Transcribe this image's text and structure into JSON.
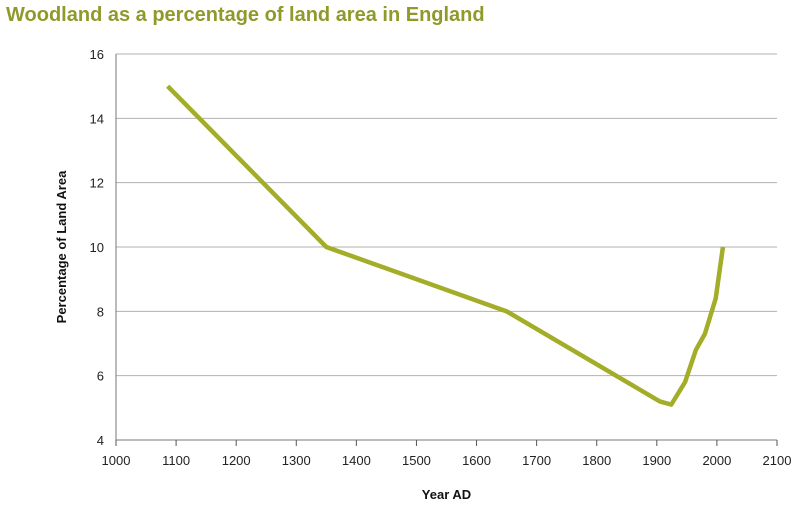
{
  "chart_data": {
    "type": "line",
    "title": "Woodland as a percentage of land area in England",
    "xlabel": "Year AD",
    "ylabel": "Percentage of Land Area",
    "xlim": [
      1000,
      2100
    ],
    "ylim": [
      4,
      16
    ],
    "xticks": [
      1000,
      1100,
      1200,
      1300,
      1400,
      1500,
      1600,
      1700,
      1800,
      1900,
      2000,
      2100
    ],
    "yticks": [
      4,
      6,
      8,
      10,
      12,
      14,
      16
    ],
    "grid": "horizontal",
    "line_color": "#a3ad28",
    "title_color": "#8f9a2b",
    "x": [
      1086,
      1350,
      1650,
      1905,
      1924,
      1947,
      1965,
      1980,
      1998,
      2010
    ],
    "y": [
      15,
      10,
      8,
      5.2,
      5.1,
      5.8,
      6.8,
      7.3,
      8.4,
      10
    ]
  }
}
